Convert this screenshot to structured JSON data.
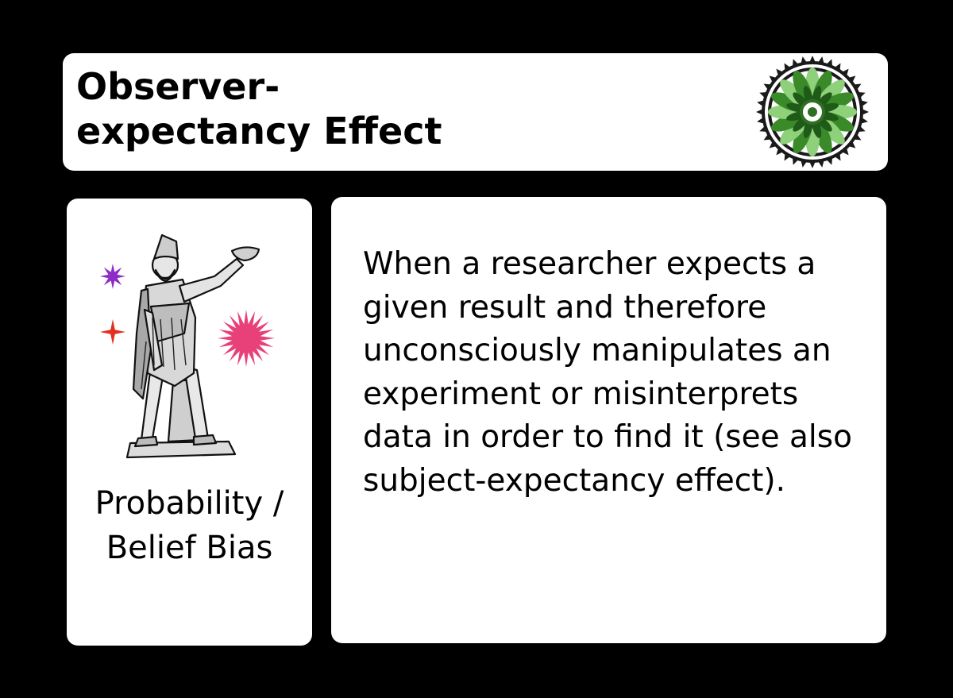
{
  "title": {
    "text": "Observer-\nexpectancy Effect"
  },
  "seal": {
    "icon": "green-leaf-seal-icon",
    "colors": {
      "ring": "#1a1a1a",
      "leaf": "#3a8a2a",
      "leaf_light": "#8fd17a"
    }
  },
  "category": {
    "label": "Probability /\nBelief Bias",
    "icon": "statue-with-bowl-icon",
    "sparkles": [
      {
        "icon": "purple-star-icon",
        "color": "#8e2cc6"
      },
      {
        "icon": "red-star-icon",
        "color": "#e0301e"
      },
      {
        "icon": "pink-burst-icon",
        "color": "#e8417a"
      }
    ]
  },
  "description": {
    "text": "When a researcher expects a given result and therefore unconsciously manipulates an experiment or misinterprets data in order to find it (see also subject-expectancy effect)."
  }
}
